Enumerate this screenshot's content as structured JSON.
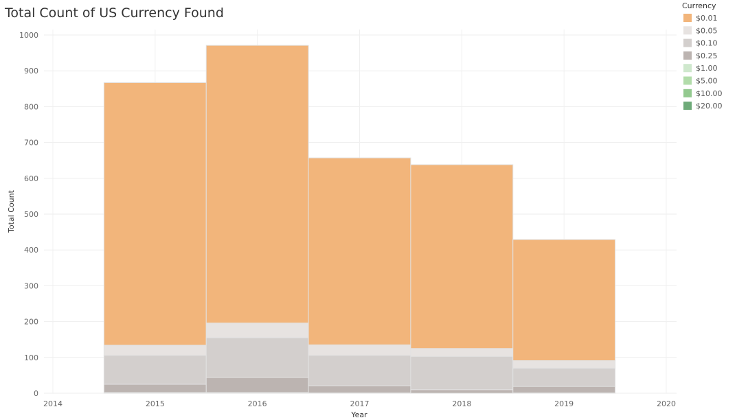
{
  "chart_data": {
    "type": "bar",
    "title": "Total Count of US Currency Found",
    "xlabel": "Year",
    "ylabel": "Total Count",
    "x_axis": {
      "min": 2014,
      "max": 2020,
      "ticks": [
        2014,
        2015,
        2016,
        2017,
        2018,
        2019,
        2020
      ]
    },
    "ylim": [
      0,
      1000
    ],
    "y_ticks": [
      0,
      100,
      200,
      300,
      400,
      500,
      600,
      700,
      800,
      900,
      1000
    ],
    "stacked": true,
    "grid": true,
    "categories": [
      2015,
      2016,
      2017,
      2018,
      2019
    ],
    "legend": {
      "title": "Currency",
      "position": "top-right"
    },
    "series": [
      {
        "name": "$0.01",
        "color": "#f2b57b",
        "values": [
          733,
          775,
          522,
          513,
          338
        ]
      },
      {
        "name": "$0.05",
        "color": "#e7e3e1",
        "values": [
          28,
          41,
          29,
          22,
          21
        ]
      },
      {
        "name": "$0.10",
        "color": "#d3cfcd",
        "values": [
          81,
          111,
          85,
          93,
          51
        ]
      },
      {
        "name": "$0.25",
        "color": "#bcb4b1",
        "values": [
          23,
          42,
          20,
          10,
          18
        ]
      },
      {
        "name": "$1.00",
        "color": "#cfe8cd",
        "values": [
          1,
          1,
          1,
          0,
          1
        ]
      },
      {
        "name": "$5.00",
        "color": "#b2dcaa",
        "values": [
          0,
          1,
          0,
          0,
          0
        ]
      },
      {
        "name": "$10.00",
        "color": "#93c98f",
        "values": [
          0,
          0,
          0,
          0,
          0
        ]
      },
      {
        "name": "$20.00",
        "color": "#6eaa79",
        "values": [
          1,
          0,
          0,
          0,
          0
        ]
      }
    ]
  }
}
